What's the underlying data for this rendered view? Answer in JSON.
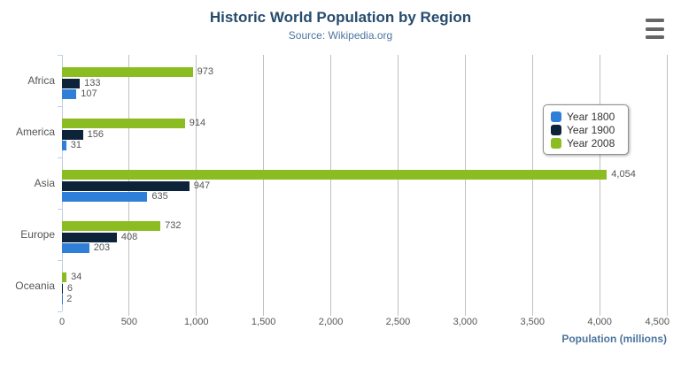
{
  "chart_data": {
    "type": "bar",
    "title": "Historic World Population by Region",
    "subtitle": "Source: Wikipedia.org",
    "categories": [
      "Africa",
      "America",
      "Asia",
      "Europe",
      "Oceania"
    ],
    "series": [
      {
        "name": "Year 1800",
        "color": "#2f7ed8",
        "values": [
          107,
          31,
          635,
          203,
          2
        ]
      },
      {
        "name": "Year 1900",
        "color": "#0d233a",
        "values": [
          133,
          156,
          947,
          408,
          6
        ]
      },
      {
        "name": "Year 2008",
        "color": "#8bbc21",
        "values": [
          973,
          914,
          4054,
          732,
          34
        ]
      }
    ],
    "bar_order_top_to_bottom": [
      "Year 2008",
      "Year 1900",
      "Year 1800"
    ],
    "data_labels": [
      "973",
      "133",
      "107",
      "914",
      "156",
      "31",
      "4,054",
      "947",
      "635",
      "732",
      "408",
      "203",
      "34",
      "6",
      "2"
    ],
    "xlabel": "Population (millions)",
    "ylabel": "",
    "xlim": [
      0,
      4500
    ],
    "x_ticks": [
      0,
      500,
      1000,
      1500,
      2000,
      2500,
      3000,
      3500,
      4000,
      4500
    ],
    "x_tick_labels": [
      "0",
      "500",
      "1,000",
      "1,500",
      "2,000",
      "2,500",
      "3,000",
      "3,500",
      "4,000",
      "4,500"
    ],
    "grid": true,
    "legend_position": "right-middle",
    "legend_items": [
      "Year 1800",
      "Year 1900",
      "Year 2008"
    ]
  },
  "toolbar": {
    "context_menu_icon": "hamburger"
  },
  "colors": {
    "title": "#274b6d",
    "subtitle": "#4d759e",
    "axis_title": "#4d759e",
    "grid_line": "#c0c0c0",
    "category_axis_line": "#c0d0e0",
    "tick_label": "#555555",
    "data_label": "#555555",
    "legend_border": "#909090",
    "menu_icon": "#666666"
  }
}
